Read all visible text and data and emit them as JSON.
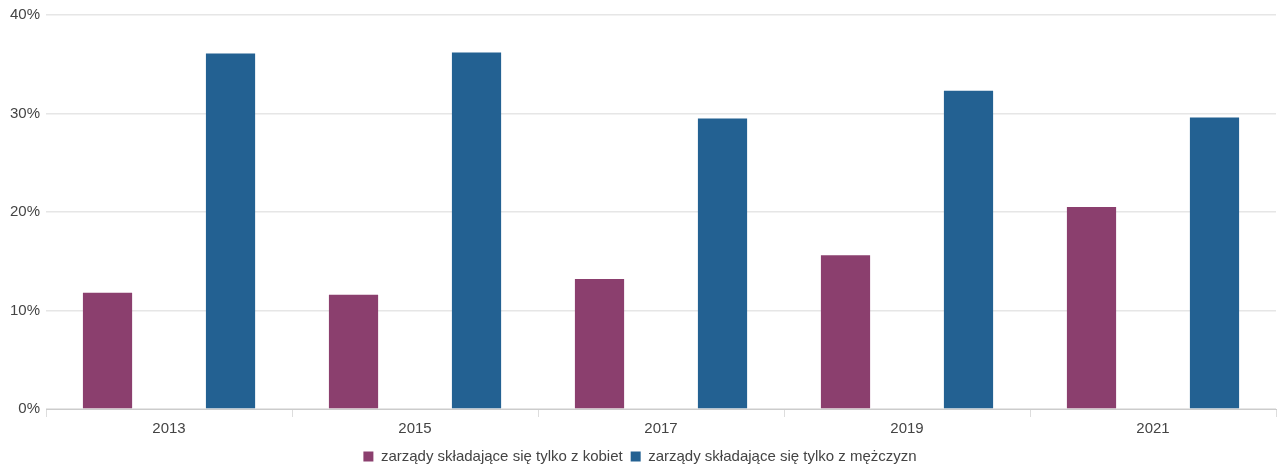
{
  "chart_data": {
    "type": "bar",
    "categories": [
      "2013",
      "2015",
      "2017",
      "2019",
      "2021"
    ],
    "series": [
      {
        "name": "zarządy składające się tylko z kobiet",
        "color": "#8b3f6e",
        "values": [
          11.8,
          11.6,
          13.2,
          15.6,
          20.5
        ]
      },
      {
        "name": "zarządy składające się tylko z mężczyzn",
        "color": "#236192",
        "values": [
          36.1,
          36.2,
          29.5,
          32.3,
          29.6
        ]
      }
    ],
    "ylim": [
      0,
      40
    ],
    "yticks": [
      {
        "value": 0,
        "label": "0%"
      },
      {
        "value": 10,
        "label": "10%"
      },
      {
        "value": 20,
        "label": "20%"
      },
      {
        "value": 30,
        "label": "30%"
      },
      {
        "value": 40,
        "label": "40%"
      }
    ],
    "grid": "y",
    "legend": "bottom"
  }
}
